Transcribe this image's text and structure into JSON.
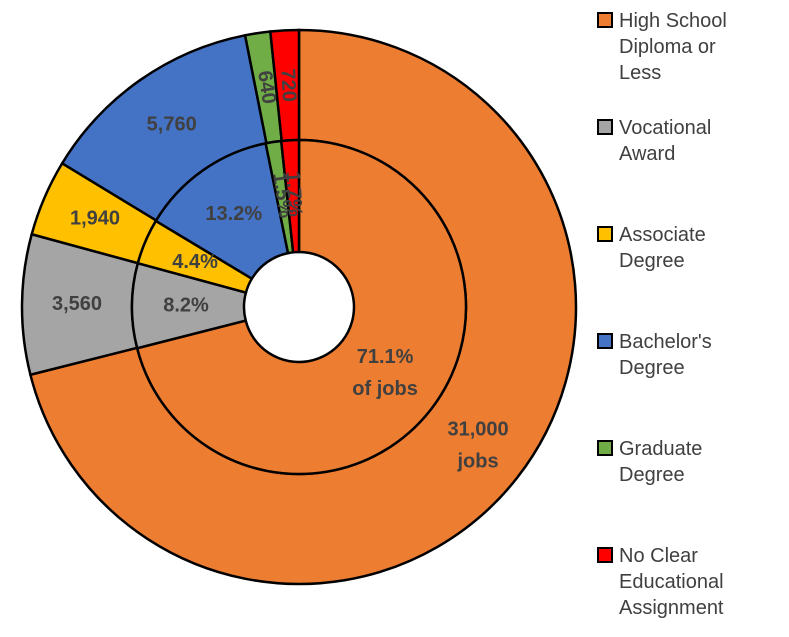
{
  "chart_data": {
    "type": "donut",
    "categories": [
      "High School Diploma or Less",
      "Vocational Award",
      "Associate Degree",
      "Bachelor's Degree",
      "Graduate Degree",
      "No Clear Educational Assignment"
    ],
    "colors": [
      "#ed7d31",
      "#a5a5a5",
      "#ffc000",
      "#4472c4",
      "#70ad47",
      "#ff0000"
    ],
    "series": [
      {
        "ring": "outer",
        "values": [
          31000,
          3560,
          1940,
          5760,
          640,
          720
        ],
        "value_labels": [
          "31,000 jobs",
          "3,560",
          "1,940",
          "5,760",
          "640",
          "720"
        ]
      },
      {
        "ring": "inner",
        "values": [
          71.1,
          8.2,
          4.4,
          13.2,
          1.5,
          1.7
        ],
        "value_labels": [
          "71.1% of jobs",
          "8.2%",
          "4.4%",
          "13.2%",
          "1.5%",
          "1.7%"
        ]
      }
    ]
  }
}
